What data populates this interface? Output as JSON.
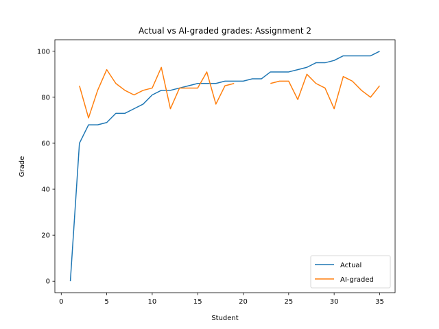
{
  "chart_data": {
    "type": "line",
    "title": "Actual vs AI-graded grades: Assignment 2",
    "xlabel": "Student",
    "ylabel": "Grade",
    "xlim": [
      -0.7,
      36.7
    ],
    "ylim": [
      -5,
      105
    ],
    "xticks": [
      0,
      5,
      10,
      15,
      20,
      25,
      30,
      35
    ],
    "yticks": [
      0,
      20,
      40,
      60,
      80,
      100
    ],
    "grid": false,
    "legend": "bottom-right",
    "x": [
      1,
      2,
      3,
      4,
      5,
      6,
      7,
      8,
      9,
      10,
      11,
      12,
      13,
      14,
      15,
      16,
      17,
      18,
      19,
      20,
      21,
      22,
      23,
      24,
      25,
      26,
      27,
      28,
      29,
      30,
      31,
      32,
      33,
      34,
      35
    ],
    "series": [
      {
        "name": "Actual",
        "color": "#1f77b4",
        "values": [
          0,
          60,
          68,
          68,
          69,
          73,
          73,
          75,
          77,
          81,
          83,
          83,
          84,
          85,
          86,
          86,
          86,
          87,
          87,
          87,
          88,
          88,
          91,
          91,
          91,
          92,
          93,
          95,
          95,
          96,
          98,
          98,
          98,
          98,
          100
        ]
      },
      {
        "name": "AI-graded",
        "color": "#ff7f0e",
        "values": [
          null,
          85,
          71,
          83,
          92,
          86,
          83,
          81,
          83,
          84,
          93,
          75,
          84,
          84,
          84,
          91,
          77,
          85,
          86,
          null,
          null,
          null,
          86,
          87,
          87,
          79,
          90,
          86,
          84,
          75,
          89,
          87,
          83,
          80,
          85
        ]
      }
    ]
  }
}
